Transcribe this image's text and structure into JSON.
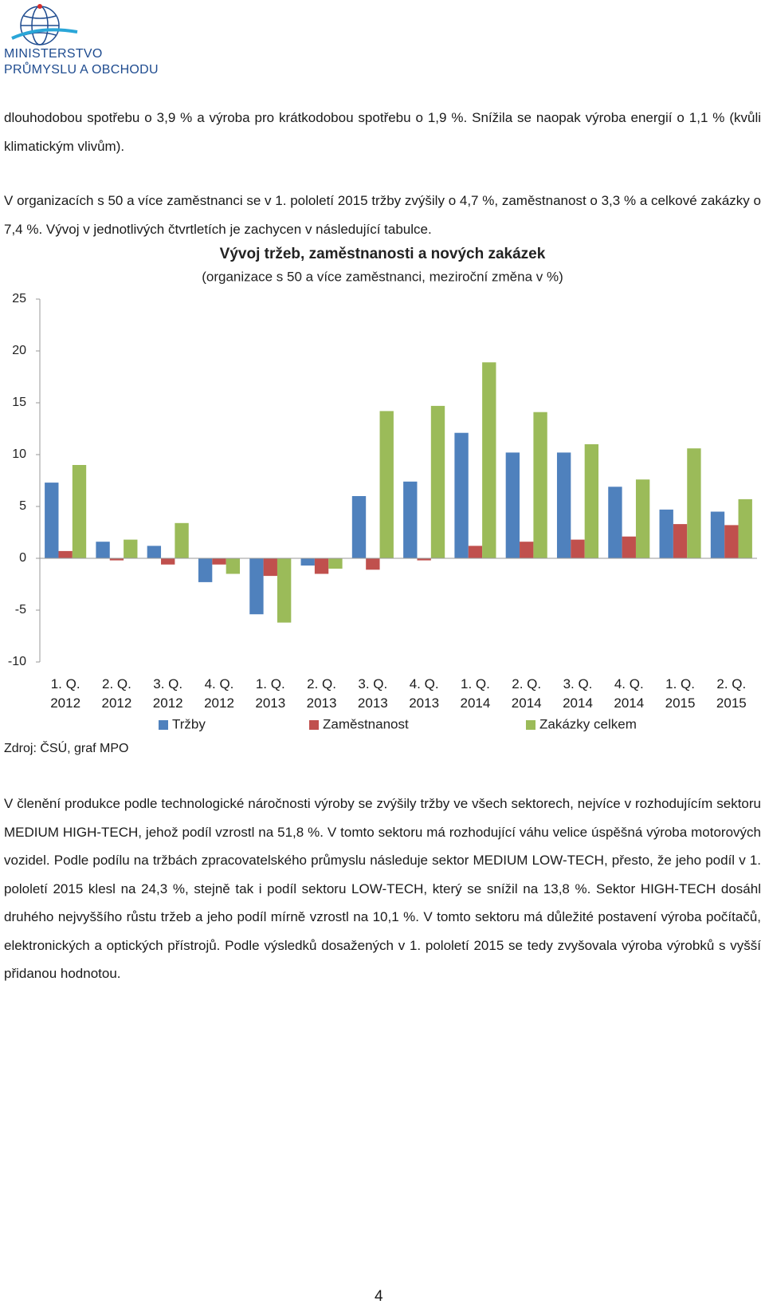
{
  "header": {
    "logo_lines": [
      "MINISTERSTVO",
      "PRŮMYSLU A OBCHODU"
    ]
  },
  "paragraphs": [
    "dlouhodobou spotřebu o 3,9 % a výroba pro krátkodobou spotřebu o 1,9 %. Snížila se naopak výroba energií o 1,1 % (kvůli klimatickým vlivům).",
    "V organizacích s 50 a více zaměstnanci se v 1. pololetí 2015 tržby zvýšily o 4,7 %, zaměstnanost o 3,3 % a celkové zakázky o 7,4 %. Vývoj v jednotlivých čtvrtletích je zachycen v následující tabulce."
  ],
  "chart_data": {
    "type": "bar",
    "title": "Vývoj tržeb, zaměstnanosti a nových zakázek",
    "subtitle": "(organizace s 50 a více zaměstnanci, meziroční změna v %)",
    "categories": [
      "1. Q. 2012",
      "2. Q. 2012",
      "3. Q. 2012",
      "4. Q. 2012",
      "1. Q. 2013",
      "2. Q. 2013",
      "3. Q. 2013",
      "4. Q. 2013",
      "1. Q. 2014",
      "2. Q. 2014",
      "3. Q. 2014",
      "4. Q. 2014",
      "1. Q. 2015",
      "2. Q. 2015"
    ],
    "series": [
      {
        "name": "Tržby",
        "color": "#4f81bd",
        "values": [
          7.3,
          1.6,
          1.2,
          -2.3,
          -5.4,
          -0.7,
          6.0,
          7.4,
          12.1,
          10.2,
          10.2,
          6.9,
          4.7,
          4.5
        ]
      },
      {
        "name": "Zaměstnanost",
        "color": "#c0504d",
        "values": [
          0.7,
          -0.2,
          -0.6,
          -0.6,
          -1.7,
          -1.5,
          -1.1,
          -0.2,
          1.2,
          1.6,
          1.8,
          2.1,
          3.3,
          3.2
        ]
      },
      {
        "name": "Zakázky celkem",
        "color": "#9bbb59",
        "values": [
          9.0,
          1.8,
          3.4,
          -1.5,
          -6.2,
          -1.0,
          14.2,
          14.7,
          18.9,
          14.1,
          11.0,
          7.6,
          10.6,
          5.7
        ]
      }
    ],
    "ylim": [
      -10,
      25
    ],
    "yticks": [
      -10,
      -5,
      0,
      5,
      10,
      15,
      20,
      25
    ],
    "grid": false,
    "legend": "bottom"
  },
  "source": "Zdroj: ČSÚ, graf MPO",
  "paragraphs_after": [
    "V členění produkce podle technologické náročnosti výroby se zvýšily tržby ve všech sektorech, nejvíce v rozhodujícím sektoru MEDIUM HIGH-TECH, jehož podíl vzrostl na 51,8 %. V tomto sektoru má rozhodující váhu velice úspěšná výroba motorových vozidel. Podle podílu na tržbách zpracovatelského průmyslu následuje sektor MEDIUM LOW-TECH, přesto, že jeho podíl v 1. pololetí 2015 klesl na 24,3 %, stejně tak i podíl sektoru LOW-TECH, který se snížil na 13,8 %. Sektor HIGH-TECH dosáhl druhého nejvyššího růstu tržeb a jeho podíl mírně vzrostl na 10,1 %. V tomto sektoru má důležité postavení výroba počítačů, elektronických a optických přístrojů. Podle výsledků dosažených v 1. pololetí 2015 se tedy zvyšovala výroba výrobků s vyšší přidanou hodnotou."
  ],
  "page_number": "4"
}
